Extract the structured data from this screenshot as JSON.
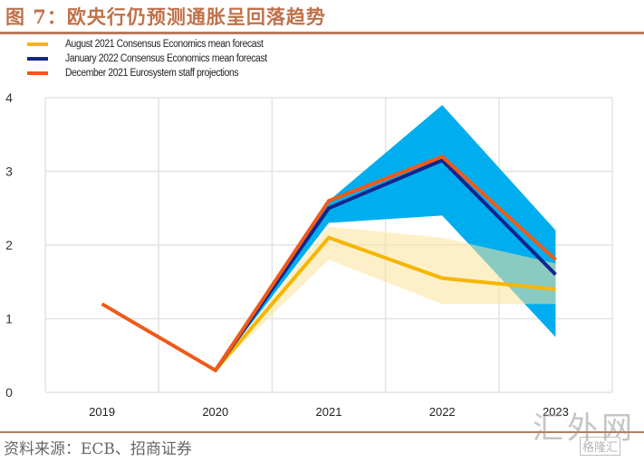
{
  "header": {
    "title": "图 7：欧央行仍预测通胀呈回落趋势"
  },
  "footer": {
    "source": "资料来源：ECB、招商证券",
    "watermark": "汇外网",
    "watermark_badge": "格隆汇"
  },
  "chart_data": {
    "type": "line",
    "title": "图 7：欧央行仍预测通胀呈回落趋势",
    "xlabel": "",
    "ylabel": "",
    "categories": [
      "2019",
      "2020",
      "2021",
      "2022",
      "2023"
    ],
    "ylim": [
      0,
      4
    ],
    "yticks": [
      0,
      1,
      2,
      3,
      4
    ],
    "grid": true,
    "legend_position": "top-left",
    "series": [
      {
        "name": "August 2021 Consensus Economics mean forecast",
        "color": "#f7b500",
        "values": [
          null,
          0.3,
          2.1,
          1.55,
          1.4
        ]
      },
      {
        "name": "January 2022 Consensus Economics mean forecast",
        "color": "#13248c",
        "values": [
          null,
          0.3,
          2.5,
          3.15,
          1.6
        ]
      },
      {
        "name": "December 2021 Eurosystem staff projections",
        "color": "#f05a19",
        "values": [
          1.2,
          0.3,
          2.6,
          3.2,
          1.8
        ]
      }
    ],
    "bands": [
      {
        "name": "January 2022 forecast range",
        "color": "#00aeef",
        "opacity": 1.0,
        "low": [
          null,
          0.3,
          2.3,
          2.4,
          0.75
        ],
        "high": [
          null,
          0.3,
          2.6,
          3.9,
          2.2
        ]
      },
      {
        "name": "August 2021 forecast range",
        "color": "#fbe39a",
        "opacity": 0.55,
        "low": [
          null,
          0.3,
          1.8,
          1.2,
          1.2
        ],
        "high": [
          null,
          0.3,
          2.25,
          2.1,
          1.75
        ]
      }
    ]
  }
}
